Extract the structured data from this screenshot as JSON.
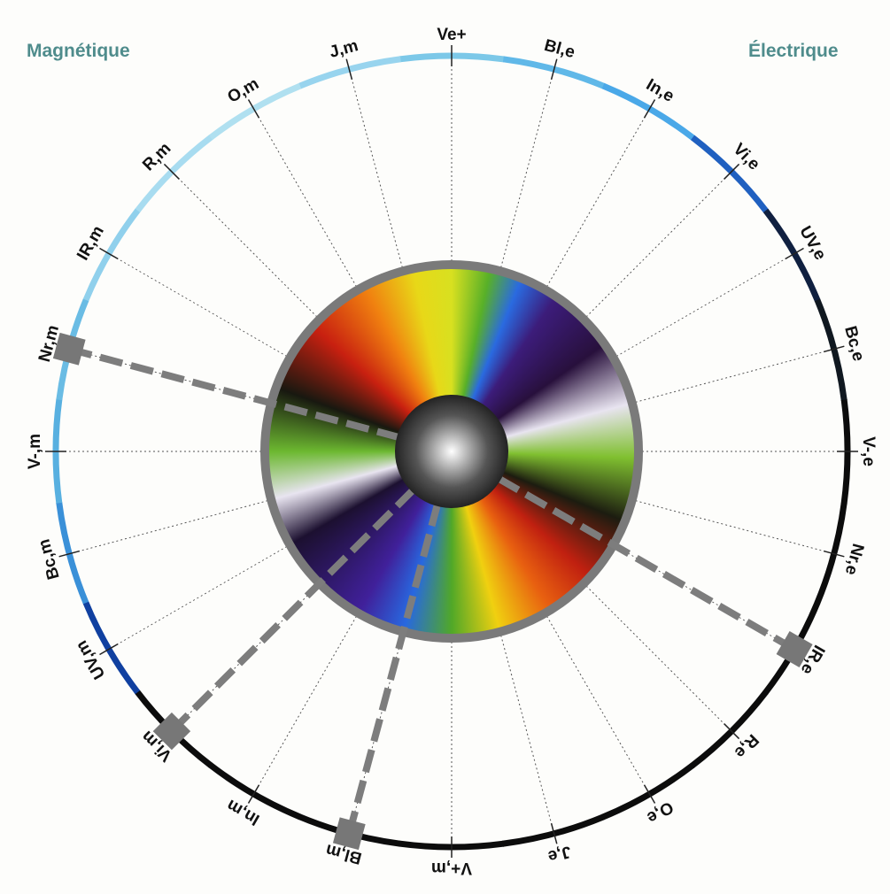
{
  "header": {
    "left": "Magnétique",
    "right": "Électrique"
  },
  "labels": [
    "Ve+",
    "Bl,e",
    "In,e",
    "Vi,e",
    "UV,e",
    "Bc,e",
    "V-,e",
    "Nr,e",
    "IR,e",
    "R,e",
    "O,e",
    "J,e",
    "V+,m",
    "Bl,m",
    "In,m",
    "Vi,m",
    "UV,m",
    "Bc,m",
    "V-,m",
    "Nr,m",
    "IR,m",
    "R,m",
    "O,m",
    "J,m"
  ]
}
